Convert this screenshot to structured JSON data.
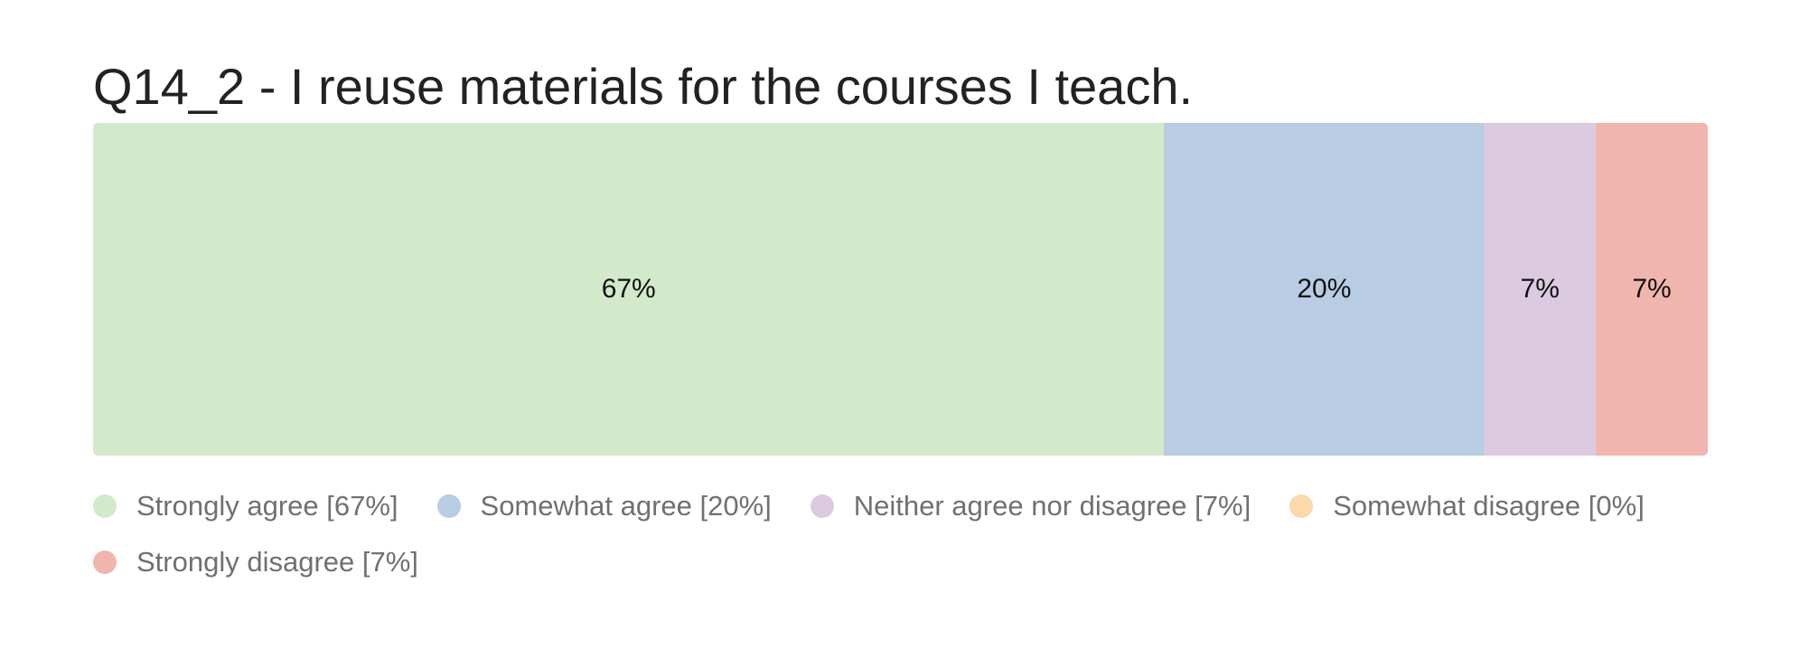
{
  "chart_data": {
    "type": "bar",
    "stacked": true,
    "orientation": "horizontal",
    "title": "Q14_2 - I reuse materials for the courses I teach.",
    "categories": [
      "Strongly agree",
      "Somewhat agree",
      "Neither agree nor disagree",
      "Somewhat disagree",
      "Strongly disagree"
    ],
    "values": [
      67,
      20,
      7,
      0,
      7
    ],
    "unit": "%",
    "data_labels": [
      "67%",
      "20%",
      "7%",
      "",
      "7%"
    ],
    "legend_labels": [
      "Strongly agree [67%]",
      "Somewhat agree [20%]",
      "Neither agree nor disagree [7%]",
      "Somewhat disagree [0%]",
      "Strongly disagree [7%]"
    ],
    "colors": [
      "#d3eaca",
      "#b8cce3",
      "#dccae0",
      "#fbd9a8",
      "#f0b6ae"
    ],
    "legend_position": "bottom",
    "grid": false
  }
}
